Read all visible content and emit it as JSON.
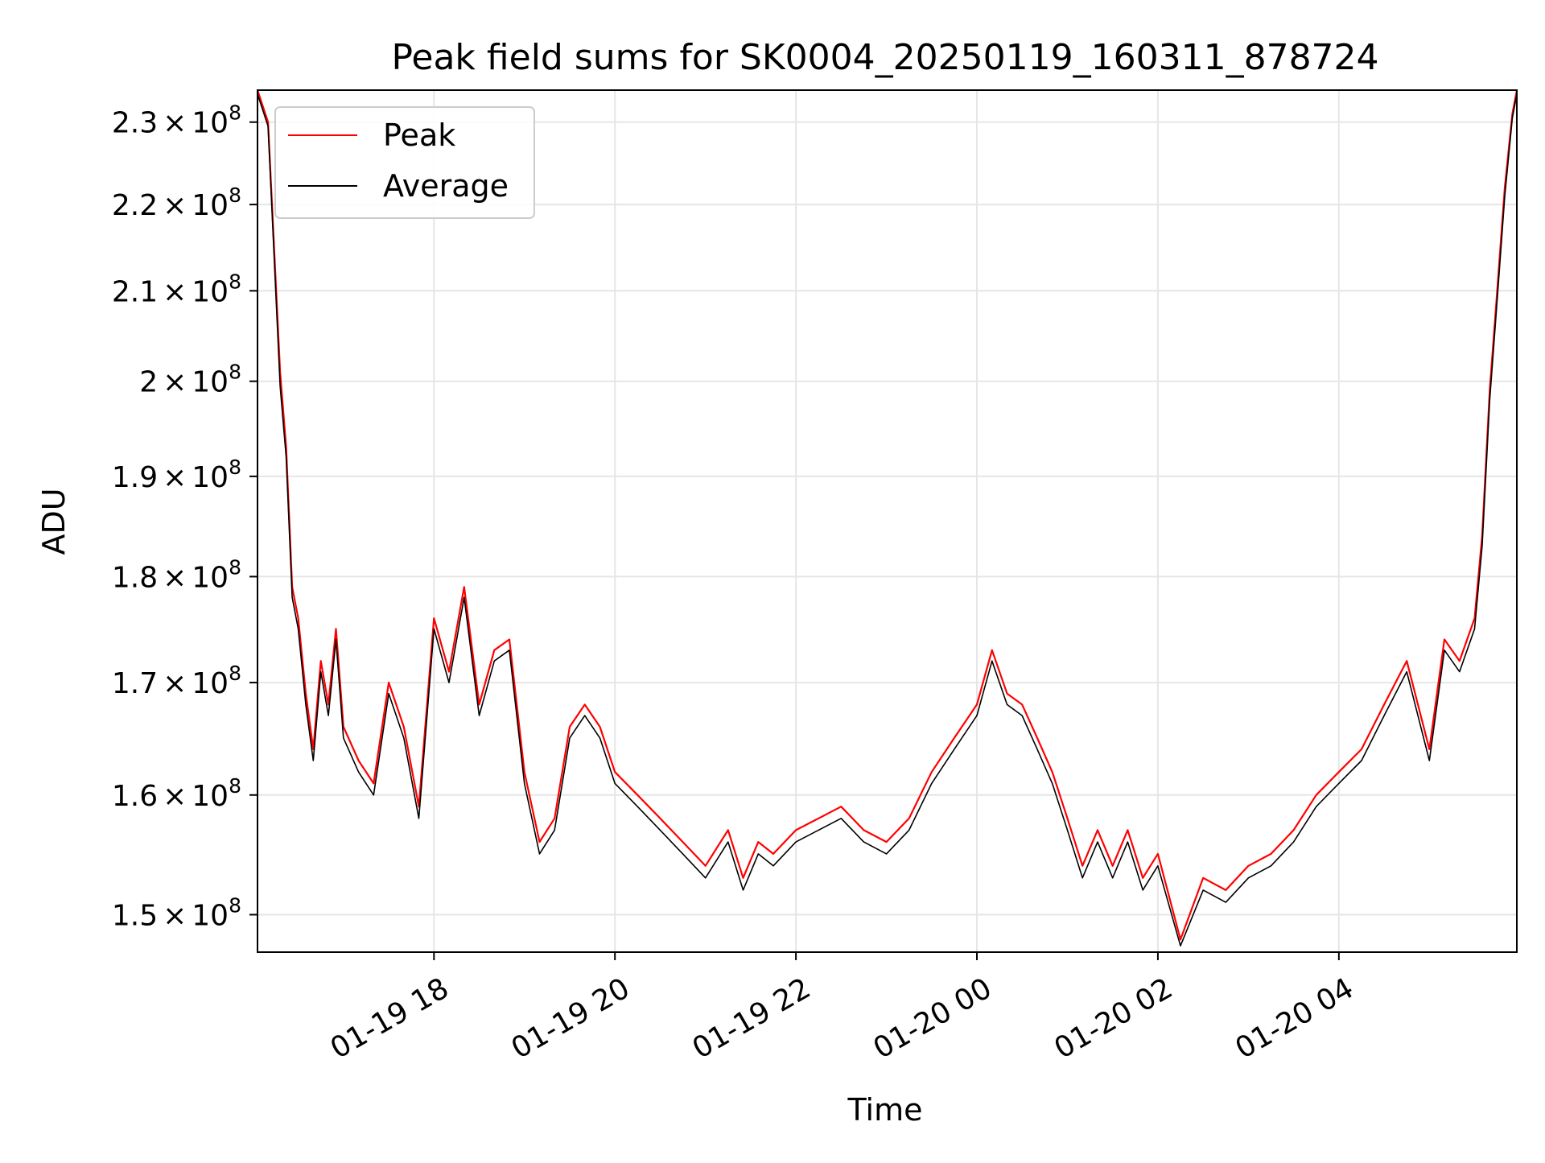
{
  "chart_data": {
    "type": "line",
    "title": "Peak field sums for SK0004_20250119_160311_878724",
    "xlabel": "Time",
    "ylabel": "ADU",
    "yscale": "log",
    "grid": true,
    "legend_position": "top-left",
    "x_range": [
      "2025-01-19 16:03",
      "2025-01-20 05:58"
    ],
    "ylim": [
      147000000,
      234000000
    ],
    "x_ticks": [
      "01-19 18",
      "01-19 20",
      "01-19 22",
      "01-20 00",
      "01-20 02",
      "01-20 04"
    ],
    "y_ticks": [
      {
        "value": 150000000,
        "mantissa": "1.5",
        "exp": "8"
      },
      {
        "value": 160000000,
        "mantissa": "1.6",
        "exp": "8"
      },
      {
        "value": 170000000,
        "mantissa": "1.7",
        "exp": "8"
      },
      {
        "value": 180000000,
        "mantissa": "1.8",
        "exp": "8"
      },
      {
        "value": 190000000,
        "mantissa": "1.9",
        "exp": "8"
      },
      {
        "value": 200000000,
        "mantissa": "2",
        "exp": "8"
      },
      {
        "value": 210000000,
        "mantissa": "2.1",
        "exp": "8"
      },
      {
        "value": 220000000,
        "mantissa": "2.2",
        "exp": "8"
      },
      {
        "value": 230000000,
        "mantissa": "2.3",
        "exp": "8"
      }
    ],
    "tick_format": {
      "times": "×",
      "base": "10"
    },
    "series": [
      {
        "name": "Peak",
        "color": "#ff0000",
        "x": [
          "2025-01-19 16:03",
          "2025-01-19 16:10",
          "2025-01-19 16:14",
          "2025-01-19 16:18",
          "2025-01-19 16:22",
          "2025-01-19 16:26",
          "2025-01-19 16:30",
          "2025-01-19 16:35",
          "2025-01-19 16:40",
          "2025-01-19 16:45",
          "2025-01-19 16:50",
          "2025-01-19 16:55",
          "2025-01-19 17:00",
          "2025-01-19 17:10",
          "2025-01-19 17:20",
          "2025-01-19 17:30",
          "2025-01-19 17:40",
          "2025-01-19 17:50",
          "2025-01-19 18:00",
          "2025-01-19 18:10",
          "2025-01-19 18:20",
          "2025-01-19 18:30",
          "2025-01-19 18:40",
          "2025-01-19 18:50",
          "2025-01-19 19:00",
          "2025-01-19 19:10",
          "2025-01-19 19:20",
          "2025-01-19 19:30",
          "2025-01-19 19:40",
          "2025-01-19 19:50",
          "2025-01-19 20:00",
          "2025-01-19 20:15",
          "2025-01-19 20:30",
          "2025-01-19 20:45",
          "2025-01-19 21:00",
          "2025-01-19 21:15",
          "2025-01-19 21:25",
          "2025-01-19 21:35",
          "2025-01-19 21:45",
          "2025-01-19 22:00",
          "2025-01-19 22:15",
          "2025-01-19 22:30",
          "2025-01-19 22:45",
          "2025-01-19 23:00",
          "2025-01-19 23:15",
          "2025-01-19 23:30",
          "2025-01-19 23:45",
          "2025-01-20 00:00",
          "2025-01-20 00:10",
          "2025-01-20 00:20",
          "2025-01-20 00:30",
          "2025-01-20 00:40",
          "2025-01-20 00:50",
          "2025-01-20 01:00",
          "2025-01-20 01:10",
          "2025-01-20 01:20",
          "2025-01-20 01:30",
          "2025-01-20 01:40",
          "2025-01-20 01:50",
          "2025-01-20 02:00",
          "2025-01-20 02:15",
          "2025-01-20 02:30",
          "2025-01-20 02:45",
          "2025-01-20 03:00",
          "2025-01-20 03:15",
          "2025-01-20 03:30",
          "2025-01-20 03:45",
          "2025-01-20 04:00",
          "2025-01-20 04:15",
          "2025-01-20 04:30",
          "2025-01-20 04:45",
          "2025-01-20 05:00",
          "2025-01-20 05:10",
          "2025-01-20 05:20",
          "2025-01-20 05:30",
          "2025-01-20 05:35",
          "2025-01-20 05:40",
          "2025-01-20 05:45",
          "2025-01-20 05:50",
          "2025-01-20 05:55",
          "2025-01-20 05:58"
        ],
        "values": [
          234000000,
          230000000,
          215000000,
          201000000,
          193000000,
          179000000,
          176000000,
          169000000,
          164000000,
          172000000,
          168000000,
          175000000,
          166000000,
          163000000,
          161000000,
          170000000,
          166000000,
          159000000,
          176000000,
          171000000,
          179000000,
          168000000,
          173000000,
          174000000,
          162000000,
          156000000,
          158000000,
          166000000,
          168000000,
          166000000,
          162000000,
          160000000,
          158000000,
          156000000,
          154000000,
          157000000,
          153000000,
          156000000,
          155000000,
          157000000,
          158000000,
          159000000,
          157000000,
          156000000,
          158000000,
          162000000,
          165000000,
          168000000,
          173000000,
          169000000,
          168000000,
          165000000,
          162000000,
          158000000,
          154000000,
          157000000,
          154000000,
          157000000,
          153000000,
          155000000,
          148000000,
          153000000,
          152000000,
          154000000,
          155000000,
          157000000,
          160000000,
          162000000,
          164000000,
          168000000,
          172000000,
          164000000,
          174000000,
          172000000,
          176000000,
          184000000,
          199000000,
          210000000,
          222000000,
          231000000,
          234000000
        ]
      },
      {
        "name": "Average",
        "color": "#000000",
        "x": [
          "2025-01-19 16:03",
          "2025-01-19 16:10",
          "2025-01-19 16:14",
          "2025-01-19 16:18",
          "2025-01-19 16:22",
          "2025-01-19 16:26",
          "2025-01-19 16:30",
          "2025-01-19 16:35",
          "2025-01-19 16:40",
          "2025-01-19 16:45",
          "2025-01-19 16:50",
          "2025-01-19 16:55",
          "2025-01-19 17:00",
          "2025-01-19 17:10",
          "2025-01-19 17:20",
          "2025-01-19 17:30",
          "2025-01-19 17:40",
          "2025-01-19 17:50",
          "2025-01-19 18:00",
          "2025-01-19 18:10",
          "2025-01-19 18:20",
          "2025-01-19 18:30",
          "2025-01-19 18:40",
          "2025-01-19 18:50",
          "2025-01-19 19:00",
          "2025-01-19 19:10",
          "2025-01-19 19:20",
          "2025-01-19 19:30",
          "2025-01-19 19:40",
          "2025-01-19 19:50",
          "2025-01-19 20:00",
          "2025-01-19 20:15",
          "2025-01-19 20:30",
          "2025-01-19 20:45",
          "2025-01-19 21:00",
          "2025-01-19 21:15",
          "2025-01-19 21:25",
          "2025-01-19 21:35",
          "2025-01-19 21:45",
          "2025-01-19 22:00",
          "2025-01-19 22:15",
          "2025-01-19 22:30",
          "2025-01-19 22:45",
          "2025-01-19 23:00",
          "2025-01-19 23:15",
          "2025-01-19 23:30",
          "2025-01-19 23:45",
          "2025-01-20 00:00",
          "2025-01-20 00:10",
          "2025-01-20 00:20",
          "2025-01-20 00:30",
          "2025-01-20 00:40",
          "2025-01-20 00:50",
          "2025-01-20 01:00",
          "2025-01-20 01:10",
          "2025-01-20 01:20",
          "2025-01-20 01:30",
          "2025-01-20 01:40",
          "2025-01-20 01:50",
          "2025-01-20 02:00",
          "2025-01-20 02:15",
          "2025-01-20 02:30",
          "2025-01-20 02:45",
          "2025-01-20 03:00",
          "2025-01-20 03:15",
          "2025-01-20 03:30",
          "2025-01-20 03:45",
          "2025-01-20 04:00",
          "2025-01-20 04:15",
          "2025-01-20 04:30",
          "2025-01-20 04:45",
          "2025-01-20 05:00",
          "2025-01-20 05:10",
          "2025-01-20 05:20",
          "2025-01-20 05:30",
          "2025-01-20 05:35",
          "2025-01-20 05:40",
          "2025-01-20 05:45",
          "2025-01-20 05:50",
          "2025-01-20 05:55",
          "2025-01-20 05:58"
        ],
        "values": [
          233500000,
          229500000,
          214000000,
          199500000,
          192000000,
          178000000,
          175000000,
          168000000,
          163000000,
          171000000,
          167000000,
          174000000,
          165000000,
          162000000,
          160000000,
          169000000,
          165000000,
          158000000,
          175000000,
          170000000,
          178000000,
          167000000,
          172000000,
          173000000,
          161000000,
          155000000,
          157000000,
          165000000,
          167000000,
          165000000,
          161000000,
          159000000,
          157000000,
          155000000,
          153000000,
          156000000,
          152000000,
          155000000,
          154000000,
          156000000,
          157000000,
          158000000,
          156000000,
          155000000,
          157000000,
          161000000,
          164000000,
          167000000,
          172000000,
          168000000,
          167000000,
          164000000,
          161000000,
          157000000,
          153000000,
          156000000,
          153000000,
          156000000,
          152000000,
          154000000,
          147500000,
          152000000,
          151000000,
          153000000,
          154000000,
          156000000,
          159000000,
          161000000,
          163000000,
          167000000,
          171000000,
          163000000,
          173000000,
          171000000,
          175000000,
          183000000,
          198000000,
          209000000,
          221000000,
          230500000,
          233500000
        ]
      }
    ]
  }
}
